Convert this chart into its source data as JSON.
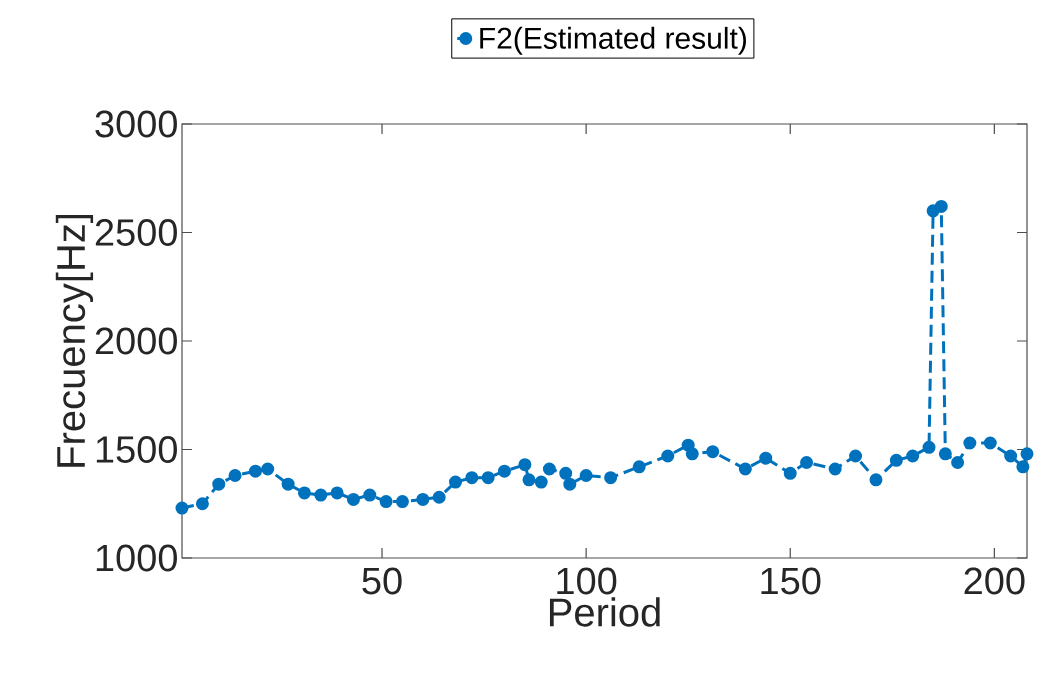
{
  "chart_data": {
    "type": "line",
    "xlabel": "Period",
    "ylabel": "Frecuency[Hz]",
    "legend": "top",
    "marker": "circle",
    "line_style": "dashed",
    "grid": false,
    "xlim": [
      1,
      208
    ],
    "ylim": [
      1000,
      3000
    ],
    "xticks": [
      50,
      100,
      150,
      200
    ],
    "yticks": [
      1000,
      1500,
      2000,
      2500,
      3000
    ],
    "series": [
      {
        "name": "F2(Estimated result)",
        "color": "#0072bd",
        "x": [
          1,
          6,
          10,
          14,
          19,
          22,
          27,
          31,
          35,
          39,
          43,
          47,
          51,
          55,
          60,
          64,
          68,
          72,
          76,
          80,
          85,
          86,
          89,
          91,
          95,
          96,
          100,
          106,
          113,
          120,
          125,
          126,
          131,
          139,
          144,
          150,
          154,
          161,
          166,
          171,
          176,
          180,
          184,
          185,
          187,
          188,
          191,
          194,
          199,
          204,
          207,
          208
        ],
        "values": [
          1230,
          1250,
          1340,
          1380,
          1400,
          1410,
          1340,
          1300,
          1290,
          1300,
          1270,
          1290,
          1260,
          1260,
          1270,
          1280,
          1350,
          1370,
          1370,
          1400,
          1430,
          1360,
          1350,
          1410,
          1390,
          1340,
          1380,
          1370,
          1420,
          1470,
          1520,
          1480,
          1490,
          1410,
          1460,
          1390,
          1440,
          1410,
          1470,
          1360,
          1450,
          1470,
          1510,
          2600,
          2620,
          1480,
          1440,
          1530,
          1530,
          1470,
          1420,
          1480
        ]
      }
    ]
  }
}
